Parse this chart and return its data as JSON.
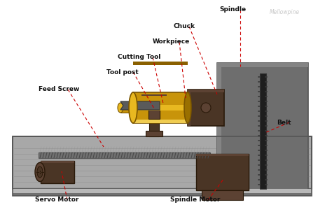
{
  "bg_color": "#ffffff",
  "watermark": "Mellowpine",
  "watermark_color": "#c8c8c8",
  "label_color": "#111111",
  "line_color": "#cc0000",
  "colors": {
    "base_light": "#a8a8a8",
    "base_lighter": "#b8b8b8",
    "base_dark": "#707070",
    "base_edge": "#555555",
    "brown_dark": "#4a3525",
    "brown_mid": "#5c4233",
    "brown_light": "#7a5a42",
    "yellow_body": "#c8940a",
    "yellow_top": "#e8b820",
    "yellow_shade": "#f0cc50",
    "belt_black": "#1e1e1e",
    "spindle_box": "#6e6e6e",
    "spindle_face": "#848484",
    "screw_gray": "#707070",
    "screw_light": "#909090"
  },
  "labels_info": [
    [
      "Spindle",
      313,
      14,
      343,
      95
    ],
    [
      "Chuck",
      248,
      38,
      310,
      135
    ],
    [
      "Workpiece",
      218,
      60,
      265,
      140
    ],
    [
      "Cutting Tool",
      168,
      82,
      233,
      148
    ],
    [
      "Tool post",
      152,
      103,
      220,
      155
    ],
    [
      "Feed Screw",
      55,
      128,
      148,
      210
    ],
    [
      "Servo Motor",
      50,
      286,
      88,
      245
    ],
    [
      "Spindle Motor",
      243,
      286,
      320,
      255
    ],
    [
      "Belt",
      395,
      175,
      378,
      190
    ]
  ]
}
